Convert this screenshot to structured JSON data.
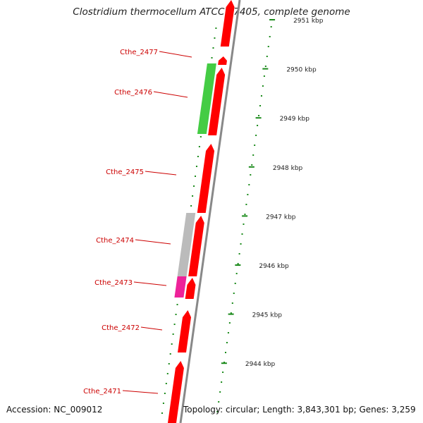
{
  "title": "Clostridium thermocellum ATCC 27405, complete genome",
  "accession": "Accession: NC_009012",
  "topology": "Topology: circular; Length: 3,843,301 bp; Genes: 3,259",
  "colors": {
    "label": "#cc0000",
    "gene_forward": "#ff0000",
    "backbone": "#888888",
    "ticks": "#1a8a1a",
    "cog_green": "#44cc44",
    "cog_gray": "#bbbbbb",
    "cog_pink": "#ee2299"
  },
  "scale_labels": [
    "2951 kbp",
    "2950 kbp",
    "2949 kbp",
    "2948 kbp",
    "2947 kbp",
    "2946 kbp",
    "2945 kbp",
    "2944 kbp"
  ],
  "gene_labels": [
    "Cthe_2477",
    "Cthe_2476",
    "Cthe_2475",
    "Cthe_2474",
    "Cthe_2473",
    "Cthe_2472",
    "Cthe_2471"
  ],
  "genes": [
    {
      "name": "Cthe_2477",
      "strand": "forward"
    },
    {
      "name": "Cthe_2476",
      "strand": "forward",
      "cog_color": "green"
    },
    {
      "name": "Cthe_2475",
      "strand": "forward"
    },
    {
      "name": "Cthe_2474",
      "strand": "forward",
      "cog_color": "gray"
    },
    {
      "name": "Cthe_2473",
      "strand": "forward",
      "cog_color": "pink"
    },
    {
      "name": "Cthe_2472",
      "strand": "forward"
    },
    {
      "name": "Cthe_2471",
      "strand": "forward"
    }
  ]
}
